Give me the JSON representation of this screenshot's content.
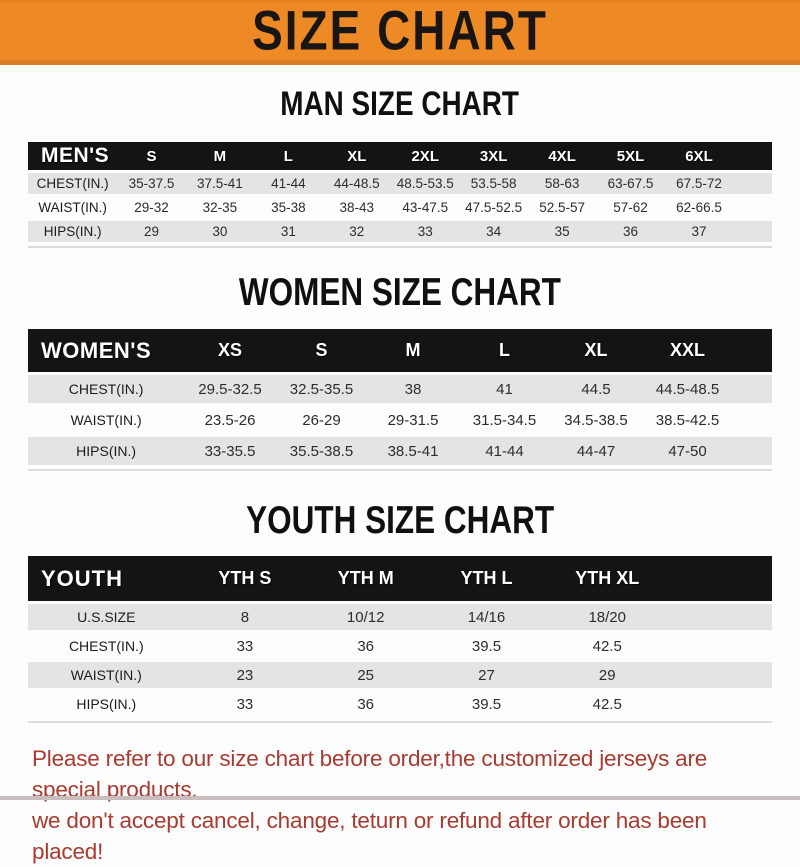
{
  "banner": {
    "title": "SIZE CHART"
  },
  "colors": {
    "banner_orange": "#ed8a26",
    "table_header_black": "#151413",
    "row_shade_gray": "#e4e4e5",
    "disclaimer_red": "#a93a30"
  },
  "sections": [
    {
      "heading": "MAN SIZE CHART",
      "table": {
        "header_label": "MEN'S",
        "columns": [
          "S",
          "M",
          "L",
          "XL",
          "2XL",
          "3XL",
          "4XL",
          "5XL",
          "6XL"
        ],
        "rows": [
          {
            "label": "CHEST(IN.)",
            "values": [
              "35-37.5",
              "37.5-41",
              "41-44",
              "44-48.5",
              "48.5-53.5",
              "53.5-58",
              "58-63",
              "63-67.5",
              "67.5-72"
            ]
          },
          {
            "label": "WAIST(IN.)",
            "values": [
              "29-32",
              "32-35",
              "35-38",
              "38-43",
              "43-47.5",
              "47.5-52.5",
              "52.5-57",
              "57-62",
              "62-66.5"
            ]
          },
          {
            "label": "HIPS(IN.)",
            "values": [
              "29",
              "30",
              "31",
              "32",
              "33",
              "34",
              "35",
              "36",
              "37"
            ]
          }
        ]
      }
    },
    {
      "heading": "WOMEN SIZE CHART",
      "table": {
        "header_label": "WOMEN'S",
        "columns": [
          "XS",
          "S",
          "M",
          "L",
          "XL",
          "XXL"
        ],
        "rows": [
          {
            "label": "CHEST(IN.)",
            "values": [
              "29.5-32.5",
              "32.5-35.5",
              "38",
              "41",
              "44.5",
              "44.5-48.5"
            ]
          },
          {
            "label": "WAIST(IN.)",
            "values": [
              "23.5-26",
              "26-29",
              "29-31.5",
              "31.5-34.5",
              "34.5-38.5",
              "38.5-42.5"
            ]
          },
          {
            "label": "HIPS(IN.)",
            "values": [
              "33-35.5",
              "35.5-38.5",
              "38.5-41",
              "41-44",
              "44-47",
              "47-50"
            ]
          }
        ]
      }
    },
    {
      "heading": "YOUTH SIZE CHART",
      "table": {
        "header_label": "YOUTH",
        "columns": [
          "YTH S",
          "YTH M",
          "YTH L",
          "YTH XL"
        ],
        "rows": [
          {
            "label": "U.S.SIZE",
            "values": [
              "8",
              "10/12",
              "14/16",
              "18/20"
            ]
          },
          {
            "label": "CHEST(IN.)",
            "values": [
              "33",
              "36",
              "39.5",
              "42.5"
            ]
          },
          {
            "label": "WAIST(IN.)",
            "values": [
              "23",
              "25",
              "27",
              "29"
            ]
          },
          {
            "label": "HIPS(IN.)",
            "values": [
              "33",
              "36",
              "39.5",
              "42.5"
            ]
          }
        ]
      }
    }
  ],
  "footer": {
    "line1": "Please refer to our size chart before order,the customized jerseys are special products,",
    "line2": "we don't accept cancel, change, teturn or refund after order has been placed!"
  }
}
